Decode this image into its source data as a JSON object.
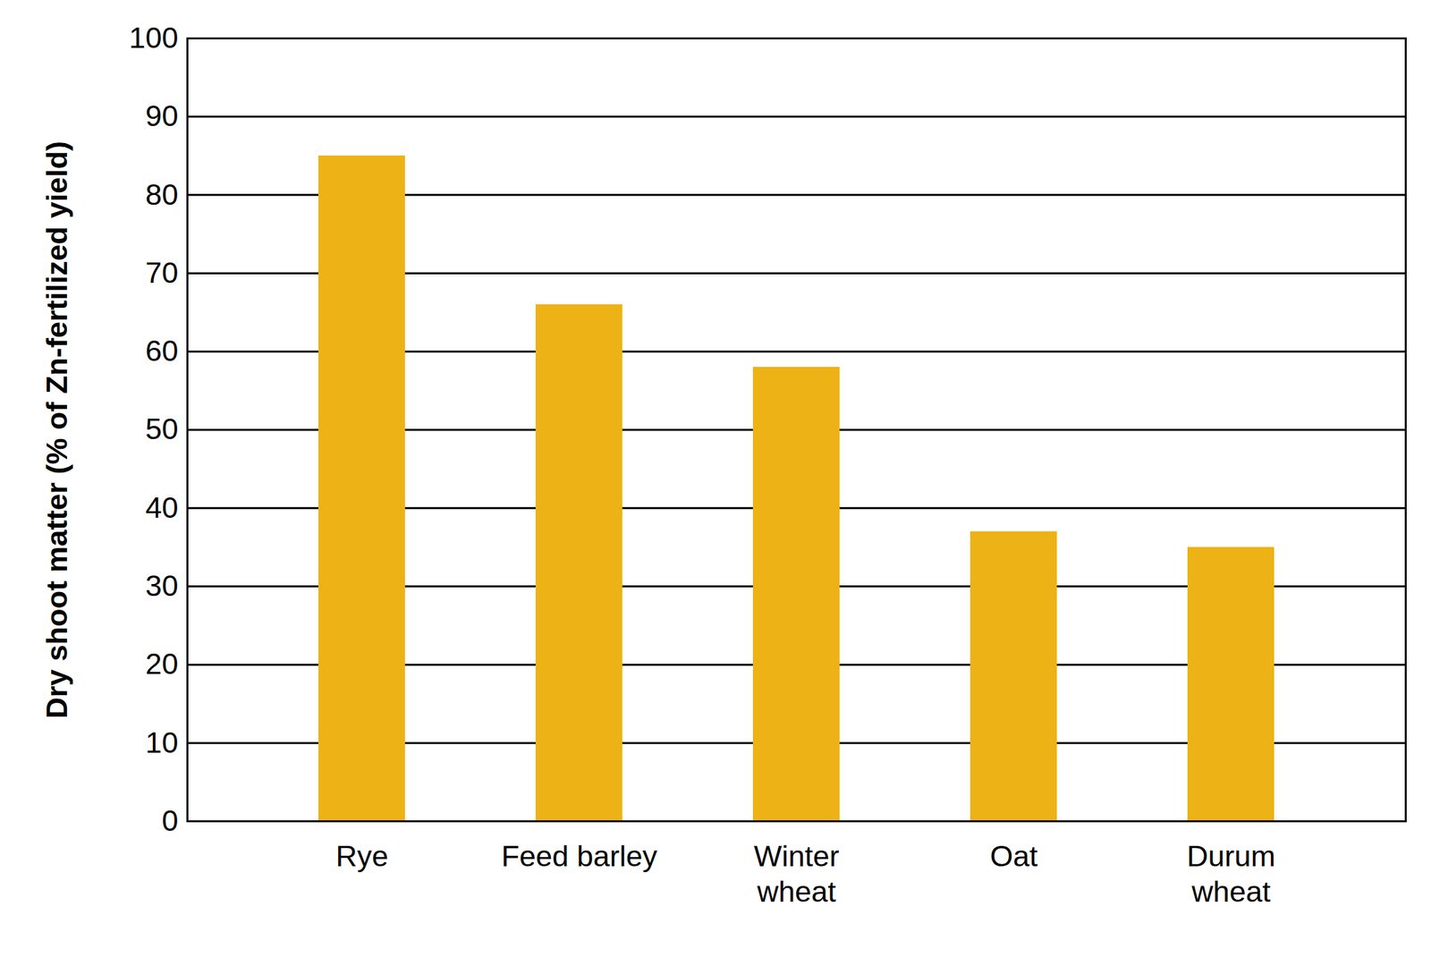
{
  "chart_data": {
    "type": "bar",
    "y_label": "Dry shoot matter (% of Zn-fertilized yield)",
    "categories": [
      "Rye",
      "Feed barley",
      "Winter\nwheat",
      "Oat",
      "Durum\nwheat"
    ],
    "values": [
      85,
      66,
      58,
      37,
      35
    ],
    "color": "#edb215",
    "ylim": [
      0,
      100
    ],
    "yticks": [
      0,
      10,
      20,
      30,
      40,
      50,
      60,
      70,
      80,
      90,
      100
    ],
    "grid": true
  }
}
